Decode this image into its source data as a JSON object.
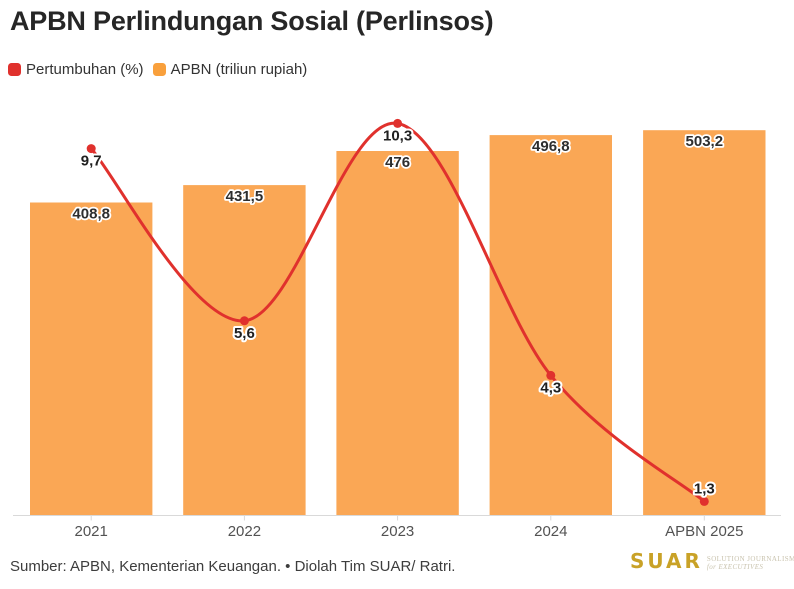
{
  "header": {
    "title": "APBN Perlindungan Sosial (Perlinsos)"
  },
  "legend": {
    "items": [
      {
        "label": "Pertumbuhan (%)",
        "color": "#e0312d"
      },
      {
        "label": "APBN (triliun rupiah)",
        "color": "#f9a03c"
      }
    ]
  },
  "chart_data": {
    "type": "bar",
    "subtype": "bar+line-combo",
    "title": "APBN Perlindungan Sosial (Perlinsos)",
    "categories": [
      "2021",
      "2022",
      "2023",
      "2024",
      "APBN 2025"
    ],
    "series": [
      {
        "name": "Pertumbuhan (%)",
        "type": "line",
        "color": "#e0312d",
        "values": [
          9.7,
          5.6,
          10.3,
          4.3,
          1.3
        ],
        "point_labels": [
          "9,7",
          "5,6",
          "10,3",
          "4,3",
          "1,3"
        ]
      },
      {
        "name": "APBN (triliun rupiah)",
        "type": "bar",
        "color": "#faa755",
        "values": [
          408.8,
          431.5,
          476,
          496.8,
          503.2
        ],
        "point_labels": [
          "408,8",
          "431,5",
          "476",
          "496,8",
          "503,2"
        ]
      }
    ],
    "bar_axis_min": 0,
    "grid": false,
    "legend_position": "top-left",
    "value_labels_visible": true,
    "axis_color": "#d9d9d9"
  },
  "footer": {
    "source": "Sumber: APBN, Kementerian Keuangan. • Diolah Tim SUAR/ Ratri.",
    "logo": {
      "word": "SUAR",
      "tagline_line1": "SOLUTION JOURNALISM",
      "tagline_line2": "for EXECUTIVES"
    }
  }
}
